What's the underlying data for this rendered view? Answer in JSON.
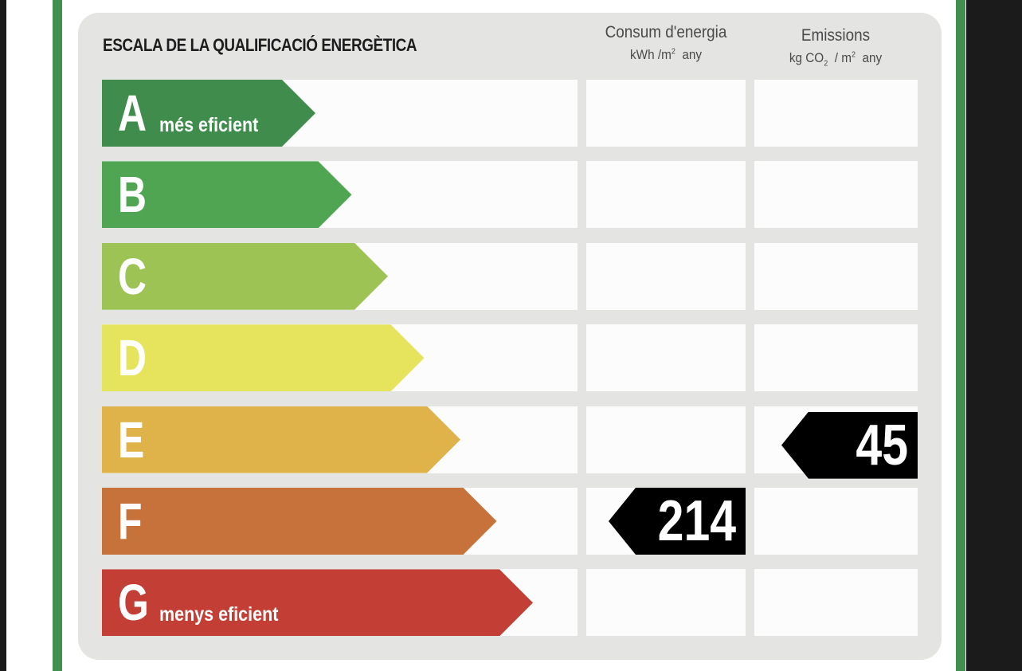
{
  "title": "ESCALA DE LA QUALIFICACIÓ ENERGÈTICA",
  "columns": {
    "consum": {
      "label": "Consum d'energia",
      "unit_prefix": "kWh /m",
      "unit_power": "2",
      "unit_suffix": "any"
    },
    "emissions": {
      "label": "Emissions",
      "unit_prefix": "kg CO",
      "unit_sub": "2",
      "unit_mid": "/ m",
      "unit_power": "2",
      "unit_suffix": "any"
    }
  },
  "ratings": [
    {
      "letter": "A",
      "label": "més eficient",
      "color": "#3f8c4c"
    },
    {
      "letter": "B",
      "label": "",
      "color": "#4fa552"
    },
    {
      "letter": "C",
      "label": "",
      "color": "#9dc354"
    },
    {
      "letter": "D",
      "label": "",
      "color": "#e6e45c"
    },
    {
      "letter": "E",
      "label": "",
      "color": "#e0b24a"
    },
    {
      "letter": "F",
      "label": "",
      "color": "#c7723b"
    },
    {
      "letter": "G",
      "label": "menys eficient",
      "color": "#c33f36"
    }
  ],
  "values": {
    "consum": {
      "rating": "F",
      "value": "214"
    },
    "emissions": {
      "rating": "E",
      "value": "45"
    }
  }
}
